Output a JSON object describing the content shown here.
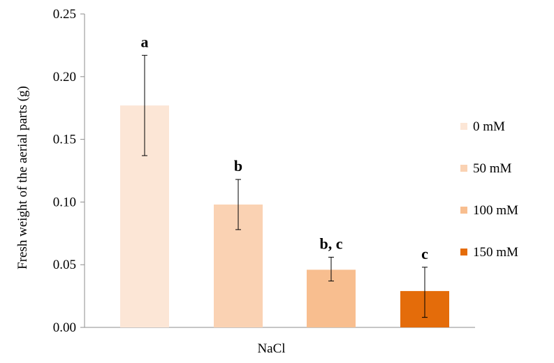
{
  "chart_data": {
    "type": "bar",
    "title": "",
    "xlabel": "NaCl",
    "ylabel": "Fresh weight of the aerial parts  (g)",
    "ylim": [
      0,
      0.25
    ],
    "yticks": [
      "0.00",
      "0.05",
      "0.10",
      "0.15",
      "0.20",
      "0.25"
    ],
    "grid": false,
    "legend_position": "right",
    "series": [
      {
        "name": "0 mM",
        "value": 0.177,
        "error_low": 0.137,
        "error_high": 0.217,
        "label": "a",
        "color": "#fce6d6"
      },
      {
        "name": "50 mM",
        "value": 0.098,
        "error_low": 0.078,
        "error_high": 0.118,
        "label": "b",
        "color": "#fad2b3"
      },
      {
        "name": "100 mM",
        "value": 0.046,
        "error_low": 0.037,
        "error_high": 0.056,
        "label": "b, c",
        "color": "#f8be8f"
      },
      {
        "name": "150 mM",
        "value": 0.029,
        "error_low": 0.008,
        "error_high": 0.048,
        "label": "c",
        "color": "#e46c0a"
      }
    ]
  }
}
